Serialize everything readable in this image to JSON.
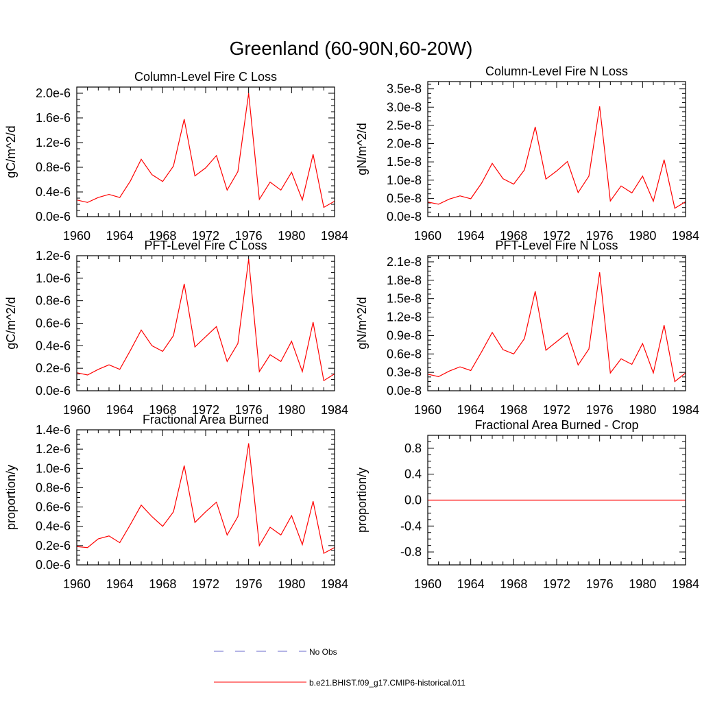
{
  "page_title": "Greenland (60-90N,60-20W)",
  "colors": {
    "series": "#ff0000",
    "obs": "#6a6acd",
    "axis": "#000000"
  },
  "legend": {
    "items": [
      {
        "label": "No Obs",
        "style": "dashed",
        "color": "#6a6acd"
      },
      {
        "label": "b.e21.BHIST.f09_g17.CMIP6-historical.011",
        "style": "solid",
        "color": "#ff0000"
      }
    ]
  },
  "chart_data": [
    {
      "type": "line",
      "title": "Column-Level Fire C Loss",
      "ylabel": "gC/m^2/d",
      "xlim": [
        1960,
        1984
      ],
      "x_ticks": [
        "1960",
        "1964",
        "1968",
        "1972",
        "1976",
        "1980",
        "1984"
      ],
      "ylim": [
        0,
        2.1e-06
      ],
      "y_ticks": [
        0,
        4e-07,
        8e-07,
        1.2e-06,
        1.6e-06,
        2e-06
      ],
      "y_tick_labels": [
        "0.0e-6",
        "0.4e-6",
        "0.8e-6",
        "1.2e-6",
        "1.6e-6",
        "2.0e-6"
      ],
      "grid": false,
      "x": [
        1960,
        1961,
        1962,
        1963,
        1964,
        1965,
        1966,
        1967,
        1968,
        1969,
        1970,
        1971,
        1972,
        1973,
        1974,
        1975,
        1976,
        1977,
        1978,
        1979,
        1980,
        1981,
        1982,
        1983,
        1984
      ],
      "series": [
        {
          "values": [
            2.7e-07,
            2.3e-07,
            3.1e-07,
            3.6e-07,
            3.1e-07,
            5.8e-07,
            9.3e-07,
            6.8e-07,
            5.7e-07,
            8.2e-07,
            1.58e-06,
            6.6e-07,
            7.9e-07,
            9.9e-07,
            4.3e-07,
            7.3e-07,
            2e-06,
            2.8e-07,
            5.6e-07,
            4.3e-07,
            7.2e-07,
            2.7e-07,
            1.01e-06,
            1.5e-07,
            2.5e-07
          ]
        }
      ]
    },
    {
      "type": "line",
      "title": "Column-Level Fire N Loss",
      "ylabel": "gN/m^2/d",
      "xlim": [
        1960,
        1984
      ],
      "x_ticks": [
        "1960",
        "1964",
        "1968",
        "1972",
        "1976",
        "1980",
        "1984"
      ],
      "ylim": [
        0,
        3.7e-08
      ],
      "y_ticks": [
        0,
        5e-09,
        1e-08,
        1.5e-08,
        2e-08,
        2.5e-08,
        3e-08,
        3.5e-08
      ],
      "y_tick_labels": [
        "0.0e-8",
        "0.5e-8",
        "1.0e-8",
        "1.5e-8",
        "2.0e-8",
        "2.5e-8",
        "3.0e-8",
        "3.5e-8"
      ],
      "grid": false,
      "x": [
        1960,
        1961,
        1962,
        1963,
        1964,
        1965,
        1966,
        1967,
        1968,
        1969,
        1970,
        1971,
        1972,
        1973,
        1974,
        1975,
        1976,
        1977,
        1978,
        1979,
        1980,
        1981,
        1982,
        1983,
        1984
      ],
      "series": [
        {
          "values": [
            4e-09,
            3.4e-09,
            4.8e-09,
            5.7e-09,
            4.9e-09,
            9.1e-09,
            1.46e-08,
            1.04e-08,
            8.9e-09,
            1.28e-08,
            2.46e-08,
            1.03e-08,
            1.25e-08,
            1.51e-08,
            6.6e-09,
            1.11e-08,
            3.02e-08,
            4.3e-09,
            8.4e-09,
            6.5e-09,
            1.11e-08,
            4.2e-09,
            1.56e-08,
            2.3e-09,
            4.1e-09
          ]
        }
      ]
    },
    {
      "type": "line",
      "title": "PFT-Level Fire C Loss",
      "ylabel": "gC/m^2/d",
      "xlim": [
        1960,
        1984
      ],
      "x_ticks": [
        "1960",
        "1964",
        "1968",
        "1972",
        "1976",
        "1980",
        "1984"
      ],
      "ylim": [
        0,
        1.2e-06
      ],
      "y_ticks": [
        0,
        2e-07,
        4e-07,
        6e-07,
        8e-07,
        1e-06,
        1.2e-06
      ],
      "y_tick_labels": [
        "0.0e-6",
        "0.2e-6",
        "0.4e-6",
        "0.6e-6",
        "0.8e-6",
        "1.0e-6",
        "1.2e-6"
      ],
      "grid": false,
      "x": [
        1960,
        1961,
        1962,
        1963,
        1964,
        1965,
        1966,
        1967,
        1968,
        1969,
        1970,
        1971,
        1972,
        1973,
        1974,
        1975,
        1976,
        1977,
        1978,
        1979,
        1980,
        1981,
        1982,
        1983,
        1984
      ],
      "series": [
        {
          "values": [
            1.6e-07,
            1.4e-07,
            1.9e-07,
            2.3e-07,
            1.9e-07,
            3.6e-07,
            5.4e-07,
            4e-07,
            3.5e-07,
            4.9e-07,
            9.5e-07,
            3.9e-07,
            4.8e-07,
            5.7e-07,
            2.6e-07,
            4.2e-07,
            1.17e-06,
            1.7e-07,
            3.2e-07,
            2.6e-07,
            4.4e-07,
            1.7e-07,
            6.1e-07,
            9e-08,
            1.5e-07
          ]
        }
      ]
    },
    {
      "type": "line",
      "title": "PFT-Level Fire N Loss",
      "ylabel": "gN/m^2/d",
      "xlim": [
        1960,
        1984
      ],
      "x_ticks": [
        "1960",
        "1964",
        "1968",
        "1972",
        "1976",
        "1980",
        "1984"
      ],
      "ylim": [
        0,
        2.2e-08
      ],
      "y_ticks": [
        0,
        3e-09,
        6e-09,
        9e-09,
        1.2e-08,
        1.5e-08,
        1.8e-08,
        2.1e-08
      ],
      "y_tick_labels": [
        "0.0e-8",
        "0.3e-8",
        "0.6e-8",
        "0.9e-8",
        "1.2e-8",
        "1.5e-8",
        "1.8e-8",
        "2.1e-8"
      ],
      "grid": false,
      "x": [
        1960,
        1961,
        1962,
        1963,
        1964,
        1965,
        1966,
        1967,
        1968,
        1969,
        1970,
        1971,
        1972,
        1973,
        1974,
        1975,
        1976,
        1977,
        1978,
        1979,
        1980,
        1981,
        1982,
        1983,
        1984
      ],
      "series": [
        {
          "values": [
            2.7e-09,
            2.3e-09,
            3.2e-09,
            3.9e-09,
            3.3e-09,
            6.3e-09,
            9.5e-09,
            6.7e-09,
            6e-09,
            8.5e-09,
            1.62e-08,
            6.6e-09,
            8e-09,
            9.4e-09,
            4.2e-09,
            6.8e-09,
            1.93e-08,
            2.9e-09,
            5.2e-09,
            4.3e-09,
            7.7e-09,
            2.9e-09,
            1.07e-08,
            1.5e-09,
            2.9e-09
          ]
        }
      ]
    },
    {
      "type": "line",
      "title": "Fractional Area Burned",
      "ylabel": "proportion/y",
      "xlim": [
        1960,
        1984
      ],
      "x_ticks": [
        "1960",
        "1964",
        "1968",
        "1972",
        "1976",
        "1980",
        "1984"
      ],
      "ylim": [
        0,
        1.4e-06
      ],
      "y_ticks": [
        0,
        2e-07,
        4e-07,
        6e-07,
        8e-07,
        1e-06,
        1.2e-06,
        1.4e-06
      ],
      "y_tick_labels": [
        "0.0e-6",
        "0.2e-6",
        "0.4e-6",
        "0.6e-6",
        "0.8e-6",
        "1.0e-6",
        "1.2e-6",
        "1.4e-6"
      ],
      "grid": false,
      "x": [
        1960,
        1961,
        1962,
        1963,
        1964,
        1965,
        1966,
        1967,
        1968,
        1969,
        1970,
        1971,
        1972,
        1973,
        1974,
        1975,
        1976,
        1977,
        1978,
        1979,
        1980,
        1981,
        1982,
        1983,
        1984
      ],
      "series": [
        {
          "values": [
            1.9e-07,
            1.8e-07,
            2.7e-07,
            3e-07,
            2.3e-07,
            4.2e-07,
            6.2e-07,
            5e-07,
            4e-07,
            5.5e-07,
            1.03e-06,
            4.4e-07,
            5.5e-07,
            6.5e-07,
            3.1e-07,
            5e-07,
            1.26e-06,
            2e-07,
            3.9e-07,
            3.1e-07,
            5.1e-07,
            2.1e-07,
            6.6e-07,
            1.2e-07,
            1.8e-07
          ]
        }
      ]
    },
    {
      "type": "line",
      "title": "Fractional Area Burned - Crop",
      "ylabel": "proportion/y",
      "xlim": [
        1960,
        1984
      ],
      "x_ticks": [
        "1960",
        "1964",
        "1968",
        "1972",
        "1976",
        "1980",
        "1984"
      ],
      "ylim": [
        -1.0,
        1.0
      ],
      "y_ticks": [
        -0.8,
        -0.4,
        0.0,
        0.4,
        0.8
      ],
      "y_tick_labels": [
        "-0.8",
        "-0.4",
        "0.0",
        "0.4",
        "0.8"
      ],
      "grid": false,
      "x": [
        1960,
        1961,
        1962,
        1963,
        1964,
        1965,
        1966,
        1967,
        1968,
        1969,
        1970,
        1971,
        1972,
        1973,
        1974,
        1975,
        1976,
        1977,
        1978,
        1979,
        1980,
        1981,
        1982,
        1983,
        1984
      ],
      "series": [
        {
          "values": [
            0,
            0,
            0,
            0,
            0,
            0,
            0,
            0,
            0,
            0,
            0,
            0,
            0,
            0,
            0,
            0,
            0,
            0,
            0,
            0,
            0,
            0,
            0,
            0,
            0
          ]
        }
      ]
    }
  ]
}
